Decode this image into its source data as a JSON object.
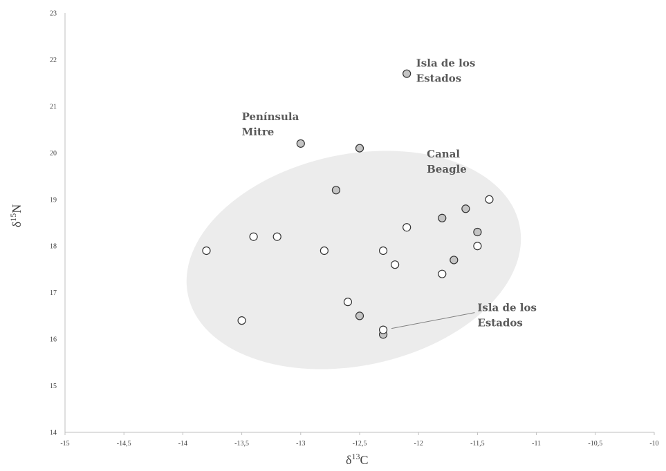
{
  "chart_data": {
    "type": "scatter",
    "title": "",
    "xlabel": {
      "prefix": "δ",
      "sup": "13",
      "suffix": "C"
    },
    "ylabel": {
      "prefix": "δ",
      "sup": "15",
      "suffix": "N"
    },
    "xlim": [
      -15,
      -10
    ],
    "ylim": [
      14,
      23
    ],
    "x_ticks": [
      -15,
      -14.5,
      -14,
      -13.5,
      -13,
      -12.5,
      -12,
      -11.5,
      -11,
      -10.5,
      -10
    ],
    "x_tick_labels": [
      "-15",
      "-14,5",
      "-14",
      "-13,5",
      "-13",
      "-12,5",
      "-12",
      "-11,5",
      "-11",
      "-10,5",
      "-10"
    ],
    "y_ticks": [
      14,
      15,
      16,
      17,
      18,
      19,
      20,
      21,
      22,
      23
    ],
    "y_tick_labels": [
      "14",
      "15",
      "16",
      "17",
      "18",
      "19",
      "20",
      "21",
      "22",
      "23"
    ],
    "grid": false,
    "legend": "none",
    "colors": {
      "filled_point": "#c4c4c4",
      "open_point": "#ffffff",
      "point_stroke": "#333333",
      "ellipse_fill": "#ececec",
      "axis": "#bfbfbf",
      "annotation": "#595959"
    },
    "series": [
      {
        "marker": "filled",
        "points": [
          [
            -12.1,
            21.7
          ],
          [
            -13.0,
            20.2
          ],
          [
            -12.5,
            20.1
          ],
          [
            -12.7,
            19.2
          ],
          [
            -11.6,
            18.8
          ],
          [
            -11.8,
            18.6
          ],
          [
            -11.5,
            18.3
          ],
          [
            -11.7,
            17.7
          ],
          [
            -12.5,
            16.5
          ],
          [
            -12.3,
            16.1
          ]
        ]
      },
      {
        "marker": "open",
        "points": [
          [
            -11.4,
            19.0
          ],
          [
            -12.1,
            18.4
          ],
          [
            -13.4,
            18.2
          ],
          [
            -13.2,
            18.2
          ],
          [
            -13.8,
            17.9
          ],
          [
            -12.8,
            17.9
          ],
          [
            -12.3,
            17.9
          ],
          [
            -11.5,
            18.0
          ],
          [
            -12.2,
            17.6
          ],
          [
            -11.8,
            17.4
          ],
          [
            -12.6,
            16.8
          ],
          [
            -13.5,
            16.4
          ],
          [
            -12.3,
            16.2
          ]
        ]
      }
    ],
    "annotations": [
      {
        "lines": [
          "Isla de los",
          "Estados"
        ],
        "x": -12.02,
        "y": 21.85
      },
      {
        "lines": [
          "Península",
          "Mitre"
        ],
        "x": -13.5,
        "y": 20.7
      },
      {
        "lines": [
          "Canal",
          "Beagle"
        ],
        "x": -11.93,
        "y": 19.9
      },
      {
        "lines": [
          "Isla de los",
          "Estados"
        ],
        "x": -11.5,
        "y": 16.6,
        "pointer_to": [
          -12.3,
          16.2
        ]
      }
    ]
  }
}
